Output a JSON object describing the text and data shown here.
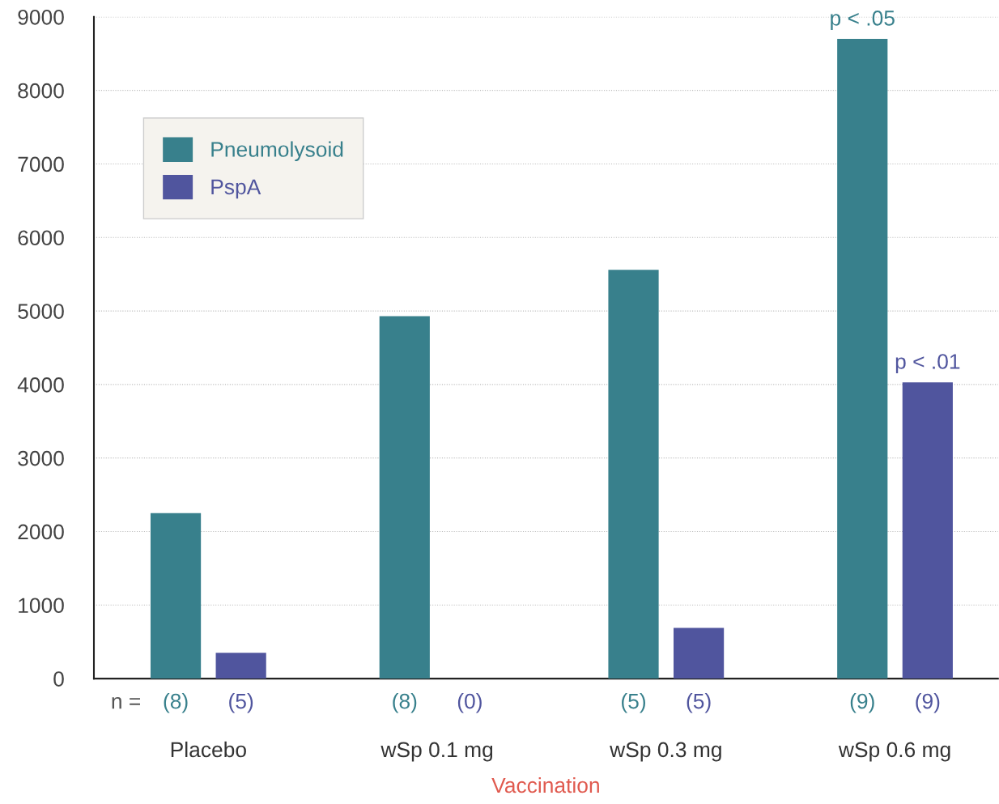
{
  "chart_data": {
    "type": "bar",
    "xlabel": "Vaccination",
    "categories": [
      "Placebo",
      "wSp 0.1 mg",
      "wSp 0.3 mg",
      "wSp 0.6 mg"
    ],
    "series": [
      {
        "name": "Pneumolysoid",
        "color": "#38808c",
        "values": [
          2250,
          4930,
          5560,
          8700
        ]
      },
      {
        "name": "PspA",
        "color": "#50559e",
        "values": [
          350,
          null,
          690,
          4030
        ]
      }
    ],
    "ylim": [
      0,
      9000
    ],
    "yticks": [
      0,
      1000,
      2000,
      3000,
      4000,
      5000,
      6000,
      7000,
      8000,
      9000
    ],
    "grid": "y",
    "legend": "top left",
    "annotations": [
      "n =",
      "(8)",
      "(5)",
      "(8)",
      "(0)",
      "(5)",
      "(5)",
      "(9)",
      "(9)",
      "p < .05",
      "p < .01"
    ]
  }
}
